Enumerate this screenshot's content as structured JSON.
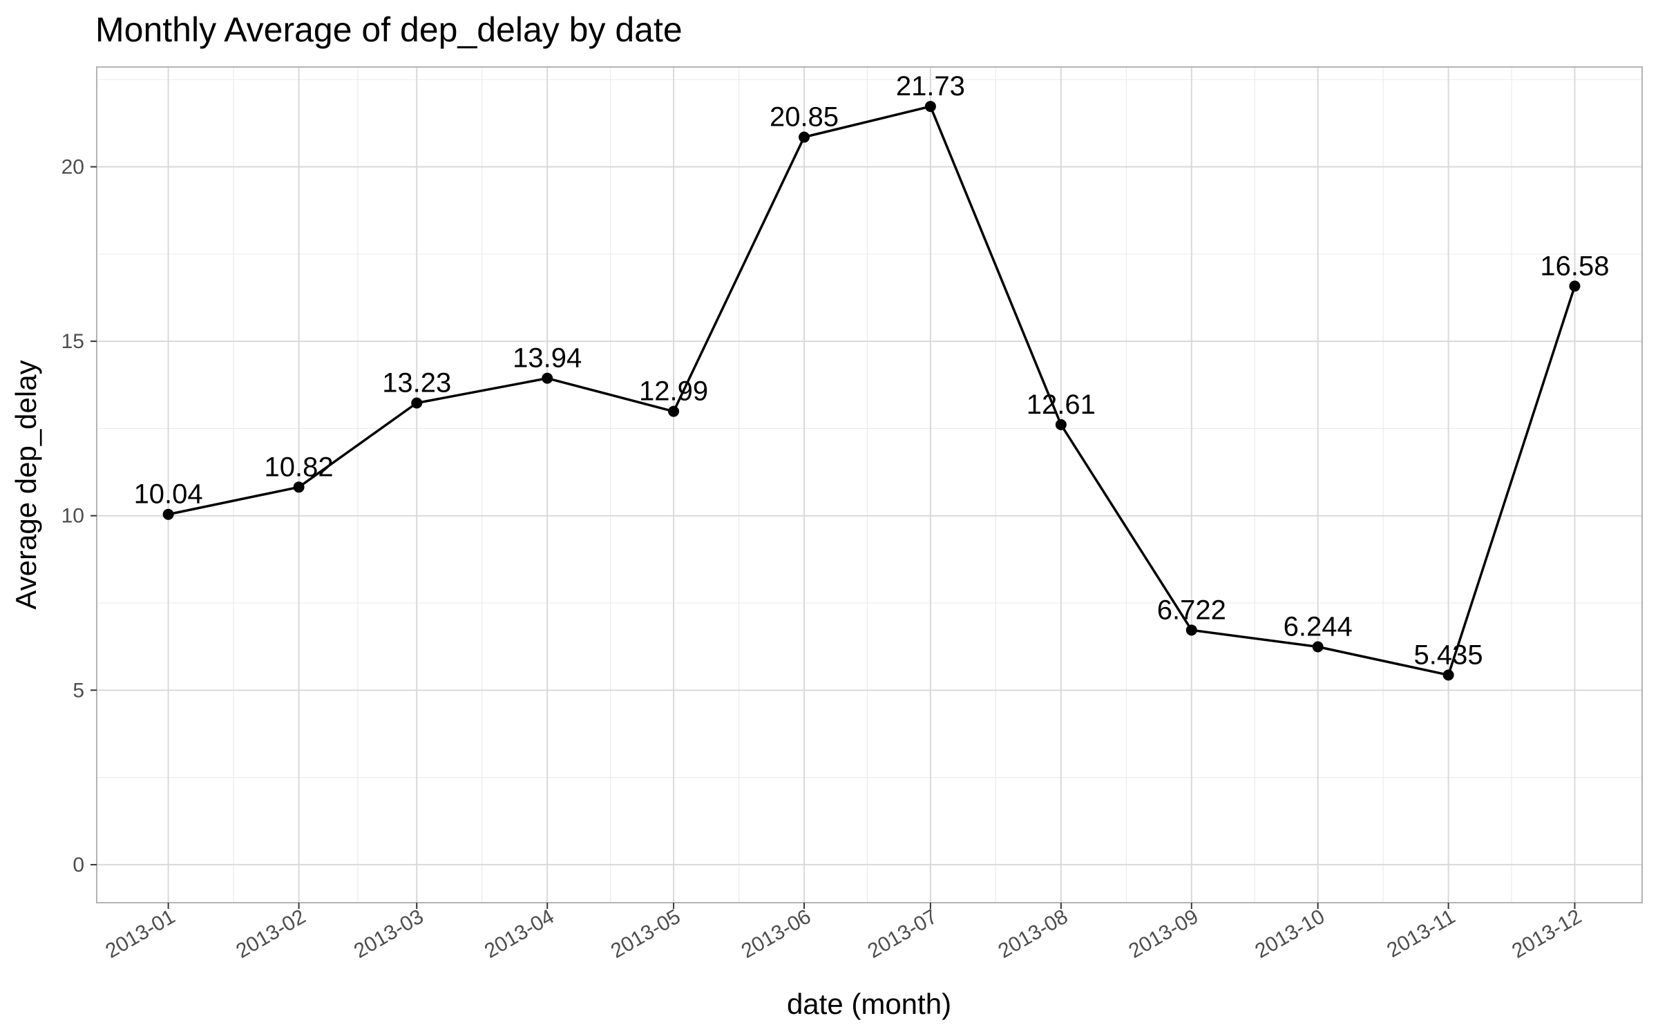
{
  "chart_data": {
    "type": "line",
    "title": "Monthly Average of dep_delay by date",
    "xlabel": "date (month)",
    "ylabel": "Average dep_delay",
    "categories": [
      "2013-01",
      "2013-02",
      "2013-03",
      "2013-04",
      "2013-05",
      "2013-06",
      "2013-07",
      "2013-08",
      "2013-09",
      "2013-10",
      "2013-11",
      "2013-12"
    ],
    "values": [
      10.04,
      10.82,
      13.23,
      13.94,
      12.99,
      20.85,
      21.73,
      12.61,
      6.722,
      6.244,
      5.435,
      16.58
    ],
    "data_labels": [
      "10.04",
      "10.82",
      "13.23",
      "13.94",
      "12.99",
      "20.85",
      "21.73",
      "12.61",
      "6.722",
      "6.244",
      "5.435",
      "16.58"
    ],
    "x_dates": [
      "2013-01-01",
      "2013-02-01",
      "2013-03-01",
      "2013-04-01",
      "2013-05-01",
      "2013-06-01",
      "2013-07-01",
      "2013-08-01",
      "2013-09-01",
      "2013-10-01",
      "2013-11-01",
      "2013-12-01"
    ],
    "xlim": [
      "2012-12-15",
      "2013-12-17"
    ],
    "ylim": [
      -1.09,
      22.86
    ],
    "y_ticks": [
      0,
      5,
      10,
      15,
      20
    ],
    "y_tick_labels": [
      "0",
      "5",
      "10",
      "15",
      "20"
    ],
    "grid": true,
    "line_color": "#000000",
    "point_color": "#000000"
  }
}
